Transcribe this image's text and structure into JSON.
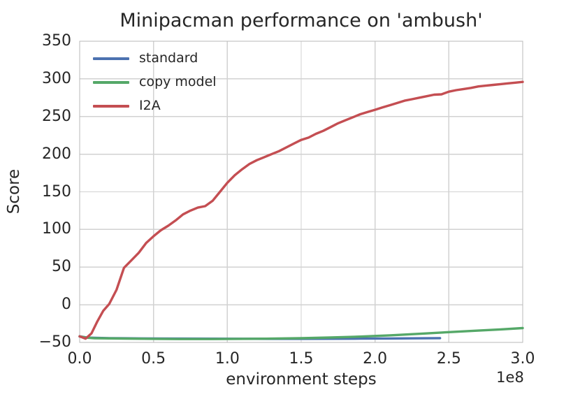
{
  "chart_data": {
    "type": "line",
    "title": "Minipacman performance on 'ambush'",
    "xlabel": "environment steps",
    "ylabel": "Score",
    "x_offset_label": "1e8",
    "x_units": "1e8 environment steps",
    "xlim": [
      0.0,
      3.0
    ],
    "ylim": [
      -50,
      350
    ],
    "grid": true,
    "legend_position": "upper-left",
    "x_tick_values": [
      0.0,
      0.5,
      1.0,
      1.5,
      2.0,
      2.5,
      3.0
    ],
    "x_tick_labels": [
      "0.0",
      "0.5",
      "1.0",
      "1.5",
      "2.0",
      "2.5",
      "3.0"
    ],
    "y_tick_values": [
      -50,
      0,
      50,
      100,
      150,
      200,
      250,
      300,
      350
    ],
    "y_tick_labels": [
      "−50",
      "0",
      "50",
      "100",
      "150",
      "200",
      "250",
      "300",
      "350"
    ],
    "series": [
      {
        "name": "standard",
        "color": "#4c72b0",
        "points": [
          [
            0,
            -42
          ],
          [
            0.05,
            -43.6
          ],
          [
            0.1,
            -44
          ],
          [
            0.2,
            -44.3
          ],
          [
            0.3,
            -44.5
          ],
          [
            0.4,
            -44.7
          ],
          [
            0.5,
            -44.8
          ],
          [
            0.7,
            -45
          ],
          [
            0.9,
            -45.1
          ],
          [
            1.1,
            -45.2
          ],
          [
            1.3,
            -45.3
          ],
          [
            1.5,
            -45.3
          ],
          [
            1.7,
            -45.2
          ],
          [
            1.9,
            -45
          ],
          [
            2.1,
            -44.8
          ],
          [
            2.25,
            -44.6
          ],
          [
            2.44,
            -44.3
          ]
        ]
      },
      {
        "name": "copy model",
        "color": "#55a868",
        "points": [
          [
            0,
            -42
          ],
          [
            0.05,
            -43.8
          ],
          [
            0.1,
            -44.4
          ],
          [
            0.3,
            -44.9
          ],
          [
            0.5,
            -45.3
          ],
          [
            0.7,
            -45.5
          ],
          [
            0.9,
            -45.5
          ],
          [
            1.1,
            -45.3
          ],
          [
            1.3,
            -45
          ],
          [
            1.5,
            -44.4
          ],
          [
            1.7,
            -43.5
          ],
          [
            1.9,
            -42.3
          ],
          [
            2.1,
            -40.6
          ],
          [
            2.3,
            -38.6
          ],
          [
            2.5,
            -36.4
          ],
          [
            2.7,
            -34.3
          ],
          [
            2.85,
            -32.7
          ],
          [
            3.0,
            -31
          ]
        ]
      },
      {
        "name": "I2A",
        "color": "#c44e52",
        "points": [
          [
            0,
            -42
          ],
          [
            0.04,
            -45
          ],
          [
            0.08,
            -38
          ],
          [
            0.12,
            -22
          ],
          [
            0.16,
            -8
          ],
          [
            0.2,
            1
          ],
          [
            0.25,
            20
          ],
          [
            0.3,
            49
          ],
          [
            0.35,
            59
          ],
          [
            0.4,
            69
          ],
          [
            0.45,
            82
          ],
          [
            0.5,
            91
          ],
          [
            0.55,
            99
          ],
          [
            0.6,
            105
          ],
          [
            0.65,
            112
          ],
          [
            0.7,
            120
          ],
          [
            0.75,
            125
          ],
          [
            0.8,
            129
          ],
          [
            0.85,
            131
          ],
          [
            0.9,
            138
          ],
          [
            0.95,
            150
          ],
          [
            1.0,
            162
          ],
          [
            1.05,
            172
          ],
          [
            1.1,
            180
          ],
          [
            1.15,
            187
          ],
          [
            1.2,
            192
          ],
          [
            1.25,
            196
          ],
          [
            1.3,
            200
          ],
          [
            1.35,
            204
          ],
          [
            1.4,
            209
          ],
          [
            1.45,
            214
          ],
          [
            1.5,
            219
          ],
          [
            1.55,
            222
          ],
          [
            1.6,
            227
          ],
          [
            1.65,
            231
          ],
          [
            1.7,
            236
          ],
          [
            1.75,
            241
          ],
          [
            1.8,
            245
          ],
          [
            1.85,
            249
          ],
          [
            1.9,
            253
          ],
          [
            1.95,
            256
          ],
          [
            2.0,
            259
          ],
          [
            2.05,
            262
          ],
          [
            2.1,
            265
          ],
          [
            2.15,
            268
          ],
          [
            2.2,
            271
          ],
          [
            2.25,
            273
          ],
          [
            2.3,
            275
          ],
          [
            2.35,
            277
          ],
          [
            2.4,
            279
          ],
          [
            2.45,
            279.5
          ],
          [
            2.5,
            283
          ],
          [
            2.55,
            285
          ],
          [
            2.6,
            286.5
          ],
          [
            2.65,
            288
          ],
          [
            2.7,
            290
          ],
          [
            2.75,
            291
          ],
          [
            2.8,
            292
          ],
          [
            2.85,
            293
          ],
          [
            2.9,
            294
          ],
          [
            2.95,
            295
          ],
          [
            3.0,
            296
          ]
        ]
      }
    ],
    "legend_entries": [
      {
        "label": "standard",
        "color": "#4c72b0"
      },
      {
        "label": "copy model",
        "color": "#55a868"
      },
      {
        "label": "I2A",
        "color": "#c44e52"
      }
    ]
  },
  "colors": {
    "background": "#ffffff",
    "grid": "#d2d2d2",
    "spine": "#b8b8b8",
    "text": "#262626"
  }
}
